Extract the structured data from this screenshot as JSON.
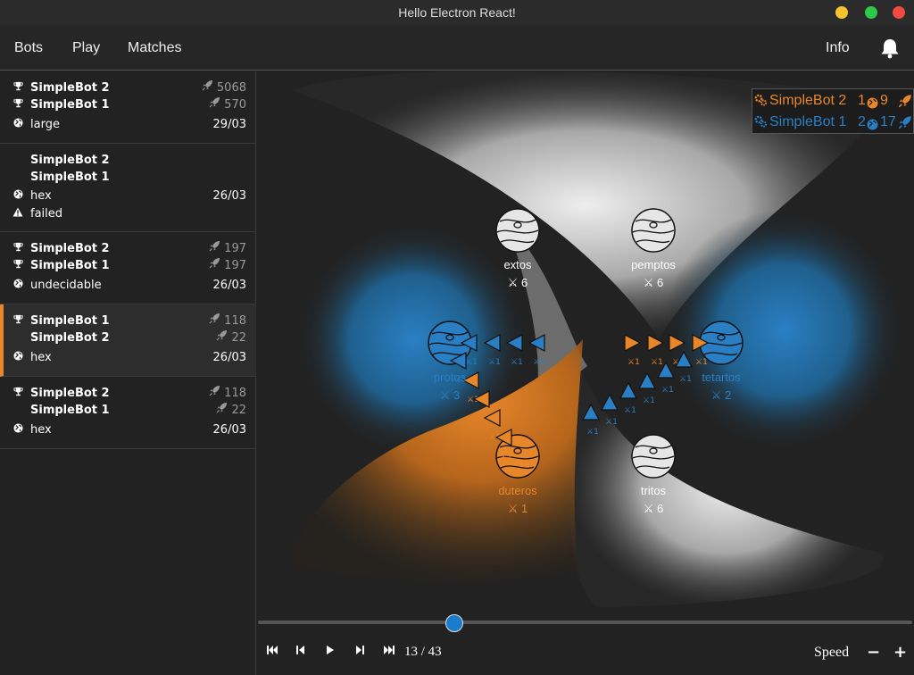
{
  "window": {
    "title": "Hello Electron React!"
  },
  "nav": {
    "bots": "Bots",
    "play": "Play",
    "matches": "Matches",
    "info": "Info"
  },
  "matches": [
    {
      "p1": "SimpleBot 2",
      "p1_score": "5068",
      "p1_trophy": true,
      "p2": "SimpleBot 1",
      "p2_score": "570",
      "p2_trophy": true,
      "map": "large",
      "date": "29/03",
      "status": ""
    },
    {
      "p1": "SimpleBot 2",
      "p1_score": "",
      "p1_trophy": false,
      "p2": "SimpleBot 1",
      "p2_score": "",
      "p2_trophy": false,
      "map": "hex",
      "date": "26/03",
      "status": "failed"
    },
    {
      "p1": "SimpleBot 2",
      "p1_score": "197",
      "p1_trophy": true,
      "p2": "SimpleBot 1",
      "p2_score": "197",
      "p2_trophy": true,
      "map": "undecidable",
      "date": "26/03",
      "status": ""
    },
    {
      "p1": "SimpleBot 1",
      "p1_score": "118",
      "p1_trophy": true,
      "p2": "SimpleBot 2",
      "p2_score": "22",
      "p2_trophy": false,
      "map": "hex",
      "date": "26/03",
      "status": ""
    },
    {
      "p1": "SimpleBot 2",
      "p1_score": "118",
      "p1_trophy": true,
      "p2": "SimpleBot 1",
      "p2_score": "22",
      "p2_trophy": false,
      "map": "hex",
      "date": "26/03",
      "status": ""
    }
  ],
  "scoreboard": [
    {
      "name": "SimpleBot 2",
      "planets": "1",
      "ships": "9",
      "color": "#e8862a"
    },
    {
      "name": "SimpleBot 1",
      "planets": "2",
      "ships": "17",
      "color": "#2a7fc4"
    }
  ],
  "planets": [
    {
      "name": "extos",
      "ships": "6",
      "owner": "neutral"
    },
    {
      "name": "pemptos",
      "ships": "6",
      "owner": "neutral"
    },
    {
      "name": "protos",
      "ships": "3",
      "owner": "blue"
    },
    {
      "name": "tetartos",
      "ships": "2",
      "owner": "blue"
    },
    {
      "name": "duteros",
      "ships": "1",
      "owner": "orange"
    },
    {
      "name": "tritos",
      "ships": "6",
      "owner": "neutral"
    }
  ],
  "fleet_label": "1",
  "playback": {
    "turn": "13 / 43",
    "progress": 0.3,
    "speed_label": "Speed",
    "minus": "−",
    "plus": "+"
  },
  "colors": {
    "orange": "#e8862a",
    "blue": "#2a7fc4",
    "neutral": "#e6e6e6"
  },
  "icons": [
    "trophy-icon",
    "globe-icon",
    "warning-icon",
    "rocket-icon",
    "bell-icon",
    "swords-icon",
    "skip-start-icon",
    "step-back-icon",
    "play-icon",
    "step-forward-icon",
    "skip-end-icon"
  ]
}
